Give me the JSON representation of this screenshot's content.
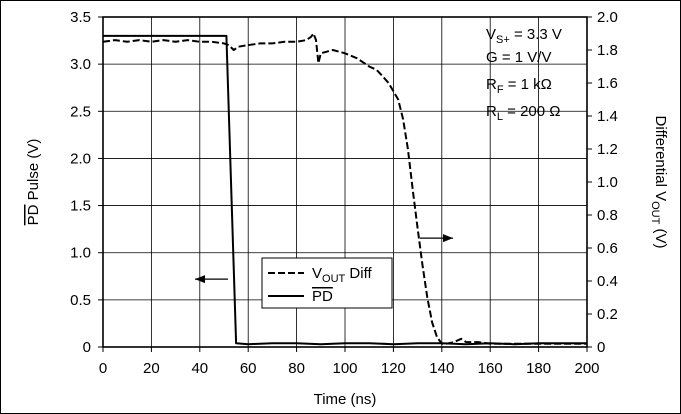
{
  "chart_data": {
    "type": "line",
    "xlabel": "Time (ns)",
    "ylabel_left": {
      "overline": "PD",
      "rest": " Pulse (V)"
    },
    "ylabel_right": {
      "main": "Differential V",
      "sub": "OUT",
      "tail": " (V)"
    },
    "x_range": [
      0,
      200
    ],
    "y_left_range": [
      0,
      3.5
    ],
    "y_right_range": [
      0,
      2.0
    ],
    "x_ticks": [
      "0",
      "20",
      "40",
      "60",
      "80",
      "100",
      "120",
      "140",
      "160",
      "180",
      "200"
    ],
    "y_left_ticks": [
      "0",
      "0.5",
      "1.0",
      "1.5",
      "2.0",
      "2.5",
      "3.0",
      "3.5"
    ],
    "y_right_ticks": [
      "0",
      "0.2",
      "0.4",
      "0.6",
      "0.8",
      "1.0",
      "1.2",
      "1.4",
      "1.6",
      "1.8",
      "2.0"
    ],
    "grid": true,
    "annotations": [
      {
        "main": "V",
        "sub": "S+",
        "tail": " = 3.3 V"
      },
      {
        "main": "G = 1 V/V",
        "sub": "",
        "tail": ""
      },
      {
        "main": "R",
        "sub": "F",
        "tail": " = 1 kΩ"
      },
      {
        "main": "R",
        "sub": "L",
        "tail": " = 200 Ω"
      }
    ],
    "legend": {
      "placement": "bottom-center",
      "entries": [
        {
          "main": "V",
          "sub": "OUT",
          "tail": " Diff",
          "overline": false,
          "style": "dashed"
        },
        {
          "main": "PD",
          "sub": "",
          "tail": "",
          "overline": true,
          "style": "solid"
        }
      ]
    },
    "series": [
      {
        "axis": "right",
        "style": "dashed",
        "x": [
          0,
          5,
          10,
          15,
          20,
          25,
          30,
          35,
          40,
          45,
          50,
          52,
          54,
          56,
          60,
          65,
          70,
          75,
          80,
          84,
          86,
          87,
          88,
          89,
          90,
          95,
          100,
          105,
          110,
          113,
          115,
          118,
          120,
          122,
          124,
          126,
          128,
          130,
          132,
          134,
          136,
          138,
          140,
          142,
          145,
          148,
          150,
          155,
          160,
          165,
          170,
          180,
          190,
          200
        ],
        "y": [
          1.85,
          1.86,
          1.85,
          1.86,
          1.85,
          1.86,
          1.85,
          1.86,
          1.85,
          1.85,
          1.84,
          1.83,
          1.8,
          1.82,
          1.83,
          1.84,
          1.84,
          1.85,
          1.85,
          1.86,
          1.88,
          1.9,
          1.86,
          1.72,
          1.78,
          1.8,
          1.78,
          1.75,
          1.7,
          1.68,
          1.65,
          1.6,
          1.55,
          1.5,
          1.38,
          1.2,
          0.95,
          0.72,
          0.5,
          0.3,
          0.15,
          0.06,
          0.02,
          0.02,
          0.03,
          0.05,
          0.03,
          0.03,
          0.02,
          0.02,
          0.02,
          0.02,
          0.02,
          0.02
        ]
      },
      {
        "axis": "left",
        "style": "solid",
        "x": [
          0,
          51,
          55,
          60,
          70,
          80,
          90,
          100,
          110,
          120,
          130,
          140,
          150,
          160,
          170,
          180,
          190,
          200
        ],
        "y": [
          3.3,
          3.3,
          0.04,
          0.03,
          0.04,
          0.04,
          0.03,
          0.04,
          0.04,
          0.03,
          0.04,
          0.04,
          0.03,
          0.04,
          0.03,
          0.04,
          0.04,
          0.04
        ]
      }
    ]
  }
}
